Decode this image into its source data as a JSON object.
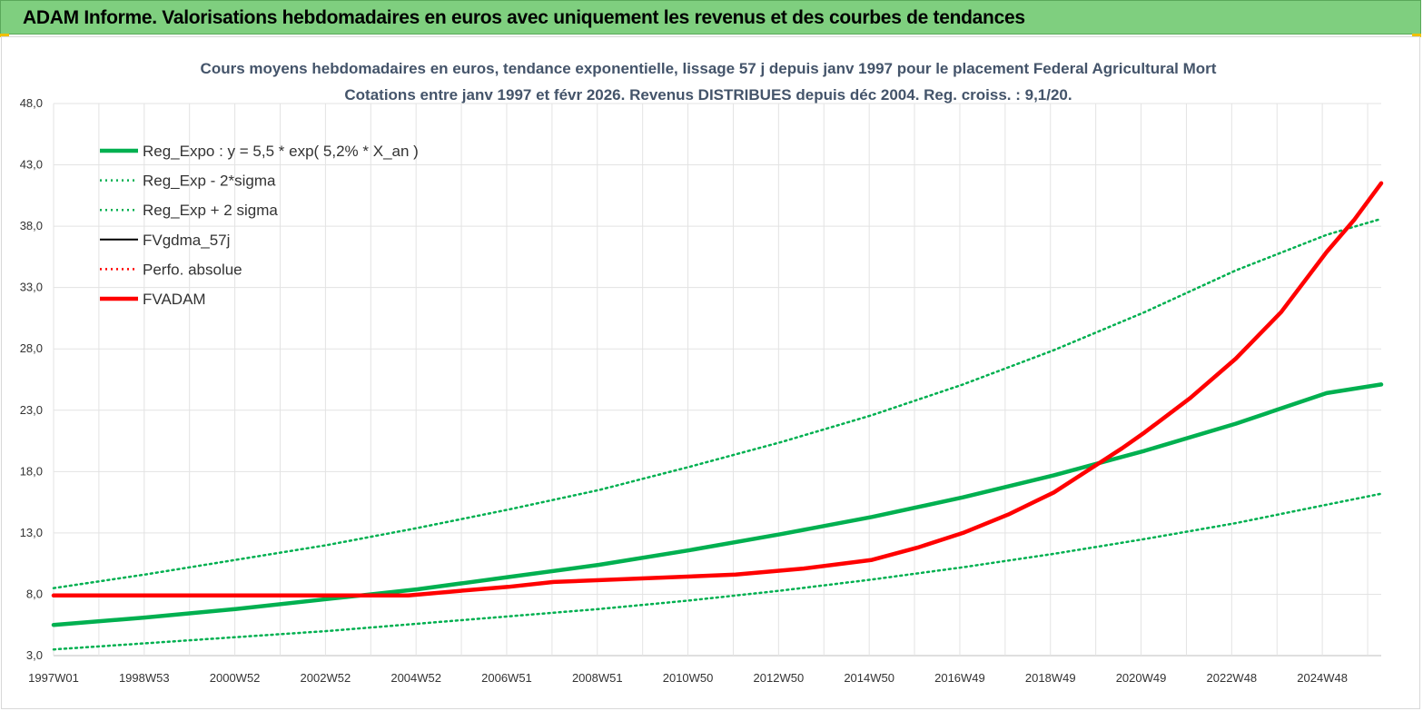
{
  "banner": {
    "title": "ADAM Informe. Valorisations hebdomadaires en euros avec uniquement les revenus et des courbes de tendances",
    "bg_color": "#7fcf7f"
  },
  "chart_data": {
    "type": "line",
    "title_line1": "Cours moyens hebdomadaires en euros, tendance exponentielle, lissage 57 j depuis janv 1997 pour le placement Federal Agricultural Mort",
    "title_line2": "Cotations entre janv 1997 et févr 2026. Revenus DISTRIBUES depuis déc 2004. Reg. croiss. : 9,1/20.",
    "xlabel": "",
    "ylabel": "",
    "x_tick_labels": [
      "1997W01",
      "1998W53",
      "2000W52",
      "2002W52",
      "2004W52",
      "2006W51",
      "2008W51",
      "2010W50",
      "2012W50",
      "2014W50",
      "2016W49",
      "2018W49",
      "2020W49",
      "2022W48",
      "2024W48"
    ],
    "x_range": [
      1997.0,
      2026.2
    ],
    "y_tick_labels": [
      "3,0",
      "8,0",
      "13,0",
      "18,0",
      "23,0",
      "28,0",
      "33,0",
      "38,0",
      "43,0",
      "48,0"
    ],
    "ylim": [
      3,
      48
    ],
    "grid": true,
    "legend_position": "top-left",
    "legend": [
      {
        "name": "Reg_Expo : y = 5,5 * exp( 5,2% *  X_an )",
        "color": "#00b050",
        "style": "solid-thick"
      },
      {
        "name": "Reg_Exp - 2*sigma",
        "color": "#00b050",
        "style": "dotted"
      },
      {
        "name": "Reg_Exp + 2 sigma",
        "color": "#00b050",
        "style": "dotted"
      },
      {
        "name": "FVgdma_57j",
        "color": "#000000",
        "style": "solid"
      },
      {
        "name": "Perfo. absolue",
        "color": "#ff0000",
        "style": "dotted"
      },
      {
        "name": "FVADAM",
        "color": "#ff0000",
        "style": "solid-thick"
      }
    ],
    "series": [
      {
        "name": "Reg_Expo : y = 5,5 * exp( 5,2% *  X_an )",
        "x": [
          1997,
          1999,
          2001,
          2003,
          2005,
          2007,
          2009,
          2011,
          2013,
          2015,
          2017,
          2019,
          2021,
          2023,
          2025,
          2026.2
        ],
        "values": [
          5.5,
          6.1,
          6.8,
          7.6,
          8.4,
          9.4,
          10.4,
          11.6,
          12.9,
          14.3,
          15.9,
          17.7,
          19.7,
          21.9,
          24.4,
          25.1
        ]
      },
      {
        "name": "Reg_Exp - 2*sigma",
        "x": [
          1997,
          1999,
          2001,
          2003,
          2005,
          2007,
          2009,
          2011,
          2013,
          2015,
          2017,
          2019,
          2021,
          2023,
          2025,
          2026.2
        ],
        "values": [
          3.5,
          4.0,
          4.5,
          5.0,
          5.6,
          6.2,
          6.8,
          7.5,
          8.3,
          9.2,
          10.2,
          11.3,
          12.5,
          13.8,
          15.3,
          16.2
        ]
      },
      {
        "name": "Reg_Exp + 2 sigma",
        "x": [
          1997,
          1999,
          2001,
          2003,
          2005,
          2007,
          2009,
          2011,
          2013,
          2015,
          2017,
          2019,
          2021,
          2023,
          2025,
          2026.2
        ],
        "values": [
          8.5,
          9.6,
          10.8,
          12.0,
          13.4,
          14.9,
          16.5,
          18.4,
          20.4,
          22.6,
          25.1,
          27.9,
          31.0,
          34.4,
          37.3,
          38.6
        ]
      },
      {
        "name": "FVgdma_57j",
        "x": [
          1997,
          2003,
          2004.8,
          2006,
          2007,
          2008,
          2010,
          2012,
          2013.5,
          2015,
          2016,
          2017,
          2018,
          2019,
          2019.5,
          2020,
          2020.5,
          2021,
          2022,
          2023,
          2024,
          2025,
          2025.6,
          2026.2
        ],
        "values": [
          7.9,
          7.9,
          7.9,
          8.3,
          8.6,
          9.0,
          9.3,
          9.6,
          10.1,
          10.8,
          11.8,
          13.0,
          14.5,
          16.3,
          17.5,
          18.7,
          19.9,
          21.2,
          24.0,
          27.2,
          31.0,
          35.9,
          38.5,
          41.5
        ]
      },
      {
        "name": "Perfo. absolue",
        "x": [],
        "values": []
      },
      {
        "name": "FVADAM",
        "x": [
          1997,
          2003,
          2004.8,
          2006,
          2007,
          2008,
          2010,
          2012,
          2013.5,
          2015,
          2016,
          2017,
          2018,
          2019,
          2019.5,
          2020,
          2020.5,
          2021,
          2022,
          2023,
          2024,
          2025,
          2025.6,
          2026.2
        ],
        "values": [
          7.9,
          7.9,
          7.9,
          8.3,
          8.6,
          9.0,
          9.3,
          9.6,
          10.1,
          10.8,
          11.8,
          13.0,
          14.5,
          16.3,
          17.5,
          18.7,
          19.9,
          21.2,
          24.0,
          27.2,
          31.0,
          35.9,
          38.5,
          41.5
        ]
      }
    ]
  }
}
